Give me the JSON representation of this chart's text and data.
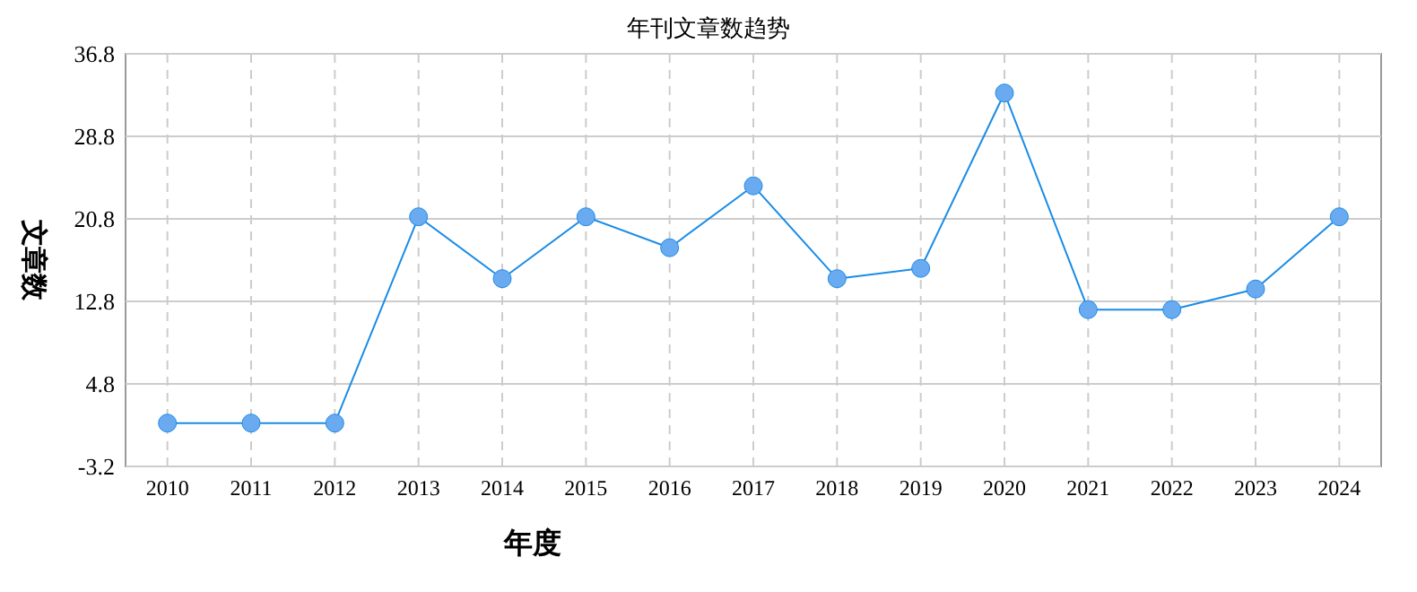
{
  "chart_data": {
    "type": "line",
    "title": "年刊文章数趋势",
    "xlabel": "年度",
    "ylabel": "文章数",
    "categories": [
      "2010",
      "2011",
      "2012",
      "2013",
      "2014",
      "2015",
      "2016",
      "2017",
      "2018",
      "2019",
      "2020",
      "2021",
      "2022",
      "2023",
      "2024"
    ],
    "series": [
      {
        "color": "#1a8ce6",
        "values": [
          1,
          1,
          1,
          21,
          15,
          21,
          18,
          24,
          15,
          16,
          33,
          12,
          12,
          14,
          21
        ]
      }
    ],
    "ylim": [
      -3.2,
      36.8
    ],
    "yticks": [
      -3.2,
      4.8,
      12.8,
      20.8,
      28.8,
      36.8
    ],
    "grid": true,
    "marker": "circle",
    "line_style": "solid"
  }
}
